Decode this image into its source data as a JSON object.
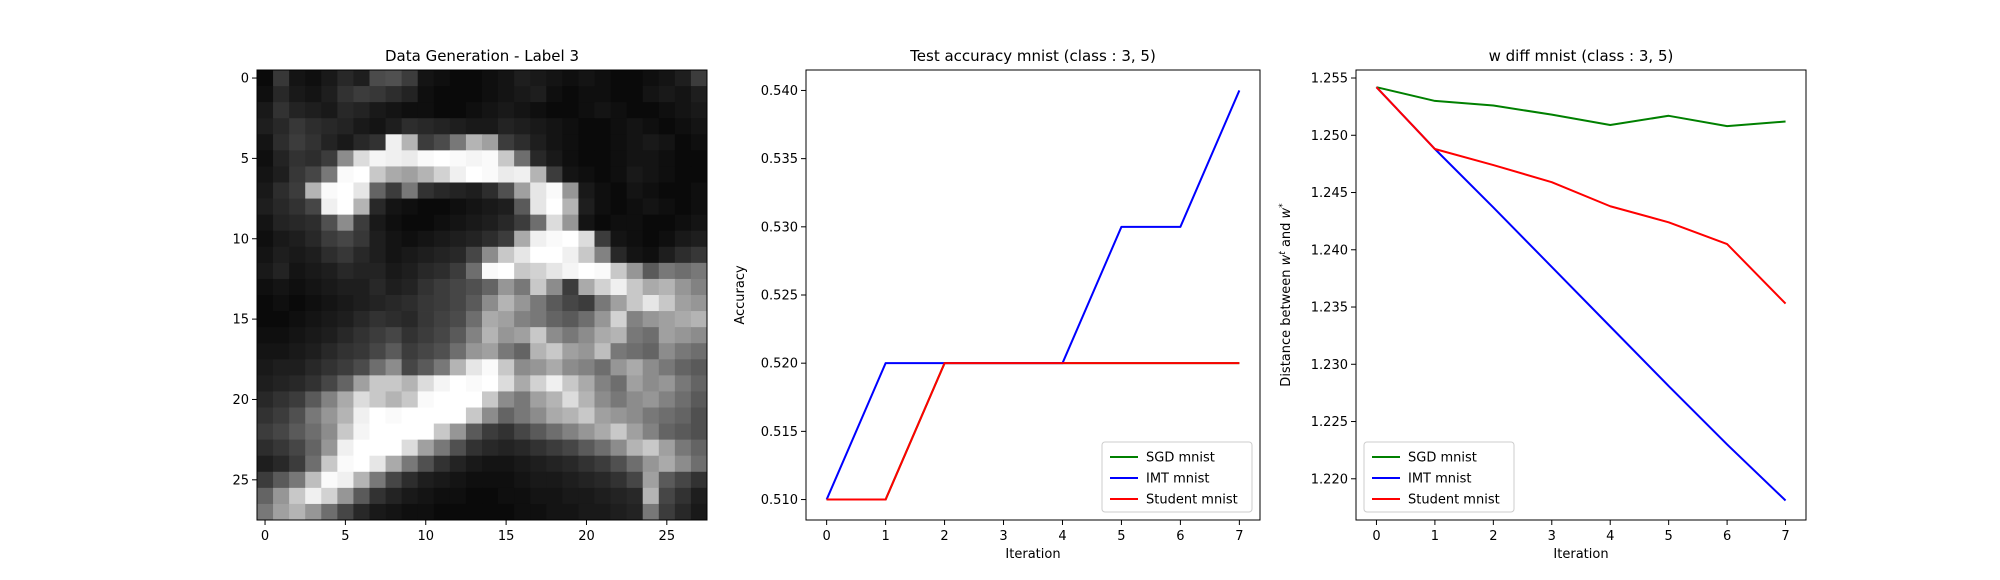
{
  "chart_data": [
    {
      "type": "heatmap",
      "title": "Data Generation - Label 3",
      "xlabel": "",
      "ylabel": "",
      "xticks": [
        "0",
        "5",
        "10",
        "15",
        "20",
        "25"
      ],
      "yticks": [
        "0",
        "5",
        "10",
        "15",
        "20",
        "25"
      ],
      "colormap": "gray",
      "shape": [
        28,
        28
      ],
      "pixels": [
        [
          10,
          55,
          20,
          15,
          25,
          40,
          30,
          75,
          80,
          60,
          20,
          15,
          10,
          10,
          15,
          20,
          30,
          25,
          20,
          15,
          20,
          15,
          10,
          10,
          15,
          20,
          30,
          60
        ],
        [
          15,
          40,
          25,
          20,
          30,
          50,
          60,
          55,
          45,
          35,
          15,
          10,
          10,
          10,
          15,
          20,
          25,
          30,
          15,
          10,
          15,
          15,
          10,
          10,
          20,
          25,
          20,
          30
        ],
        [
          25,
          50,
          35,
          30,
          25,
          40,
          35,
          25,
          20,
          15,
          15,
          10,
          10,
          15,
          20,
          25,
          20,
          15,
          10,
          10,
          15,
          20,
          15,
          10,
          10,
          15,
          20,
          25
        ],
        [
          30,
          40,
          55,
          45,
          40,
          35,
          25,
          20,
          30,
          45,
          40,
          35,
          30,
          25,
          25,
          35,
          30,
          25,
          20,
          15,
          10,
          10,
          15,
          20,
          15,
          10,
          15,
          20
        ],
        [
          20,
          45,
          60,
          50,
          35,
          25,
          40,
          50,
          240,
          180,
          60,
          75,
          120,
          180,
          160,
          60,
          45,
          30,
          20,
          15,
          10,
          10,
          15,
          20,
          25,
          20,
          10,
          15
        ],
        [
          15,
          35,
          50,
          45,
          60,
          140,
          220,
          245,
          240,
          235,
          250,
          255,
          250,
          245,
          250,
          200,
          110,
          40,
          25,
          15,
          10,
          10,
          15,
          20,
          20,
          15,
          10,
          10
        ],
        [
          20,
          30,
          55,
          70,
          120,
          250,
          255,
          200,
          170,
          160,
          180,
          210,
          240,
          255,
          250,
          235,
          240,
          180,
          60,
          20,
          15,
          10,
          15,
          25,
          20,
          15,
          10,
          10
        ],
        [
          25,
          45,
          60,
          180,
          250,
          255,
          230,
          100,
          60,
          120,
          50,
          40,
          35,
          30,
          45,
          80,
          160,
          230,
          250,
          150,
          25,
          15,
          10,
          20,
          15,
          10,
          10,
          15
        ],
        [
          30,
          40,
          50,
          70,
          240,
          255,
          180,
          40,
          20,
          15,
          10,
          10,
          15,
          20,
          25,
          30,
          90,
          230,
          255,
          180,
          30,
          15,
          10,
          15,
          20,
          15,
          10,
          15
        ],
        [
          20,
          35,
          40,
          45,
          80,
          140,
          60,
          25,
          15,
          10,
          10,
          15,
          20,
          25,
          30,
          40,
          60,
          110,
          220,
          150,
          20,
          10,
          15,
          15,
          10,
          10,
          15,
          20
        ],
        [
          15,
          25,
          30,
          40,
          60,
          70,
          55,
          30,
          20,
          15,
          20,
          25,
          30,
          35,
          45,
          60,
          170,
          240,
          250,
          255,
          220,
          60,
          20,
          15,
          10,
          15,
          25,
          30
        ],
        [
          20,
          30,
          25,
          30,
          45,
          55,
          40,
          30,
          20,
          25,
          30,
          35,
          40,
          70,
          140,
          200,
          230,
          255,
          255,
          240,
          200,
          130,
          40,
          20,
          15,
          30,
          45,
          55
        ],
        [
          25,
          35,
          20,
          25,
          30,
          40,
          35,
          35,
          25,
          30,
          40,
          45,
          60,
          110,
          250,
          255,
          200,
          210,
          230,
          245,
          255,
          250,
          200,
          150,
          90,
          120,
          110,
          120
        ],
        [
          15,
          20,
          15,
          20,
          25,
          30,
          30,
          40,
          30,
          35,
          50,
          60,
          70,
          80,
          100,
          150,
          120,
          200,
          140,
          60,
          170,
          210,
          240,
          200,
          170,
          180,
          150,
          130
        ],
        [
          10,
          15,
          10,
          15,
          20,
          25,
          30,
          35,
          40,
          45,
          55,
          60,
          70,
          90,
          140,
          180,
          150,
          120,
          90,
          70,
          60,
          120,
          160,
          200,
          230,
          200,
          160,
          150
        ],
        [
          10,
          10,
          15,
          20,
          25,
          30,
          40,
          50,
          45,
          40,
          55,
          65,
          75,
          110,
          170,
          160,
          130,
          120,
          100,
          90,
          110,
          150,
          210,
          130,
          150,
          160,
          170,
          180
        ],
        [
          15,
          15,
          20,
          25,
          30,
          40,
          50,
          60,
          70,
          50,
          60,
          70,
          90,
          130,
          180,
          150,
          160,
          200,
          140,
          120,
          140,
          170,
          180,
          120,
          110,
          160,
          150,
          140
        ],
        [
          20,
          20,
          25,
          30,
          40,
          50,
          55,
          70,
          90,
          60,
          70,
          80,
          110,
          150,
          160,
          120,
          100,
          180,
          200,
          160,
          150,
          190,
          120,
          110,
          100,
          140,
          120,
          110
        ],
        [
          25,
          30,
          30,
          40,
          50,
          60,
          75,
          110,
          140,
          70,
          90,
          120,
          180,
          230,
          250,
          200,
          140,
          150,
          170,
          140,
          130,
          110,
          150,
          170,
          140,
          120,
          100,
          90
        ],
        [
          30,
          35,
          40,
          50,
          70,
          100,
          160,
          200,
          200,
          180,
          220,
          245,
          255,
          250,
          255,
          220,
          170,
          210,
          240,
          200,
          170,
          130,
          110,
          160,
          140,
          150,
          120,
          100
        ],
        [
          40,
          50,
          60,
          90,
          130,
          170,
          220,
          200,
          180,
          200,
          250,
          255,
          255,
          255,
          200,
          140,
          120,
          160,
          180,
          220,
          180,
          140,
          120,
          140,
          150,
          130,
          110,
          90
        ],
        [
          50,
          60,
          80,
          120,
          150,
          180,
          240,
          255,
          250,
          255,
          255,
          255,
          255,
          200,
          140,
          100,
          120,
          140,
          170,
          180,
          200,
          160,
          150,
          140,
          120,
          110,
          100,
          80
        ],
        [
          60,
          70,
          90,
          110,
          140,
          200,
          245,
          255,
          255,
          255,
          255,
          200,
          150,
          90,
          60,
          50,
          70,
          90,
          110,
          130,
          150,
          170,
          200,
          160,
          130,
          100,
          90,
          80
        ],
        [
          45,
          55,
          70,
          100,
          150,
          240,
          255,
          255,
          255,
          220,
          160,
          120,
          80,
          50,
          40,
          35,
          40,
          50,
          60,
          70,
          90,
          110,
          140,
          180,
          200,
          160,
          120,
          100
        ],
        [
          30,
          40,
          60,
          110,
          200,
          250,
          255,
          230,
          170,
          120,
          80,
          50,
          35,
          25,
          20,
          20,
          25,
          30,
          35,
          40,
          50,
          60,
          80,
          110,
          150,
          170,
          140,
          110
        ],
        [
          60,
          90,
          120,
          190,
          250,
          240,
          180,
          120,
          70,
          45,
          30,
          25,
          20,
          15,
          15,
          15,
          20,
          25,
          25,
          30,
          35,
          40,
          50,
          70,
          160,
          90,
          70,
          50
        ],
        [
          100,
          150,
          200,
          240,
          210,
          150,
          90,
          50,
          35,
          25,
          20,
          15,
          15,
          10,
          10,
          15,
          15,
          20,
          20,
          25,
          25,
          30,
          35,
          40,
          180,
          70,
          50,
          30
        ],
        [
          120,
          160,
          180,
          150,
          110,
          70,
          40,
          25,
          20,
          15,
          15,
          10,
          10,
          10,
          10,
          10,
          15,
          15,
          20,
          20,
          25,
          25,
          30,
          35,
          120,
          60,
          40,
          25
        ]
      ]
    },
    {
      "type": "line",
      "title": "Test accuracy mnist (class : 3, 5)",
      "xlabel": "Iteration",
      "ylabel": "Accuracy",
      "x": [
        0,
        1,
        2,
        3,
        4,
        5,
        6,
        7
      ],
      "xlim": [
        -0.35,
        7.35
      ],
      "ylim": [
        0.5085,
        0.5415
      ],
      "xticks": [
        0,
        1,
        2,
        3,
        4,
        5,
        6,
        7
      ],
      "yticks": [
        "0.510",
        "0.515",
        "0.520",
        "0.525",
        "0.530",
        "0.535",
        "0.540"
      ],
      "legend_position": "lower-right",
      "series": [
        {
          "name": "SGD mnist",
          "color": "#008000",
          "values": [
            0.51,
            0.51,
            0.52,
            0.52,
            0.52,
            0.52,
            0.52,
            0.52
          ]
        },
        {
          "name": "IMT mnist",
          "color": "#0000ff",
          "values": [
            0.51,
            0.52,
            0.52,
            0.52,
            0.52,
            0.53,
            0.53,
            0.54
          ]
        },
        {
          "name": "Student mnist",
          "color": "#ff0000",
          "values": [
            0.51,
            0.51,
            0.52,
            0.52,
            0.52,
            0.52,
            0.52,
            0.52
          ]
        }
      ]
    },
    {
      "type": "line",
      "title": "w diff mnist (class : 3, 5)",
      "xlabel": "Iteration",
      "ylabel": "Distance between w^t and w^*",
      "x": [
        0,
        1,
        2,
        3,
        4,
        5,
        6,
        7
      ],
      "xlim": [
        -0.35,
        7.35
      ],
      "ylim": [
        1.2164,
        1.2557
      ],
      "xticks": [
        0,
        1,
        2,
        3,
        4,
        5,
        6,
        7
      ],
      "yticks": [
        "1.220",
        "1.225",
        "1.230",
        "1.235",
        "1.240",
        "1.245",
        "1.250",
        "1.255"
      ],
      "legend_position": "lower-left",
      "series": [
        {
          "name": "SGD mnist",
          "color": "#008000",
          "values": [
            1.2542,
            1.253,
            1.2526,
            1.2518,
            1.2509,
            1.2517,
            1.2508,
            1.2512
          ]
        },
        {
          "name": "IMT mnist",
          "color": "#0000ff",
          "values": [
            1.2542,
            1.2488,
            1.2437,
            1.2385,
            1.2333,
            1.2281,
            1.223,
            1.2181
          ]
        },
        {
          "name": "Student mnist",
          "color": "#ff0000",
          "values": [
            1.2542,
            1.2488,
            1.2474,
            1.2459,
            1.2438,
            1.2424,
            1.2405,
            1.2353
          ]
        }
      ]
    }
  ]
}
